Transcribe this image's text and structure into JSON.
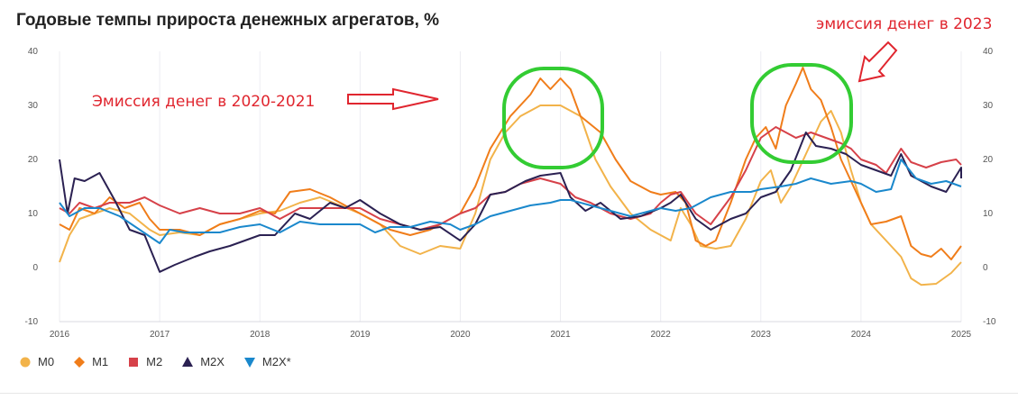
{
  "title": "Годовые темпы прироста денежных агрегатов, %",
  "annotations": {
    "left": "Эмиссия денег в 2020-2021",
    "right": "эмиссия денег в 2023"
  },
  "colors": {
    "M0": "#f2b34a",
    "M1": "#f07d1a",
    "M2": "#d64149",
    "M2X": "#2b2152",
    "M2X*": "#1a88cc",
    "annotation": "#e0262f",
    "highlight": "#33cc33"
  },
  "chart_data": {
    "type": "line",
    "title": "Годовые темпы прироста денежных агрегатов, %",
    "xlabel": "",
    "ylabel": "",
    "xlim": [
      2016,
      2025
    ],
    "ylim": [
      -10,
      40
    ],
    "x_ticks": [
      "2016",
      "2017",
      "2018",
      "2019",
      "2020",
      "2021",
      "2022",
      "2023",
      "2024",
      "2025"
    ],
    "y_ticks": [
      "40",
      "30",
      "20",
      "10",
      "0",
      "-10"
    ],
    "grid": "vertical",
    "legend_position": "bottom-left",
    "series": [
      {
        "name": "M0",
        "points": [
          [
            2016.0,
            1
          ],
          [
            2016.1,
            6
          ],
          [
            2016.2,
            9
          ],
          [
            2016.35,
            10
          ],
          [
            2016.5,
            11
          ],
          [
            2016.7,
            10
          ],
          [
            2016.9,
            7
          ],
          [
            2017.0,
            6
          ],
          [
            2017.2,
            6.5
          ],
          [
            2017.4,
            6
          ],
          [
            2017.6,
            8
          ],
          [
            2017.8,
            9
          ],
          [
            2018.0,
            10
          ],
          [
            2018.2,
            10.5
          ],
          [
            2018.4,
            12
          ],
          [
            2018.6,
            13
          ],
          [
            2018.8,
            11.5
          ],
          [
            2019.0,
            10
          ],
          [
            2019.2,
            8
          ],
          [
            2019.4,
            4
          ],
          [
            2019.6,
            2.5
          ],
          [
            2019.8,
            4
          ],
          [
            2020.0,
            3.5
          ],
          [
            2020.15,
            10
          ],
          [
            2020.3,
            20
          ],
          [
            2020.45,
            25
          ],
          [
            2020.6,
            28
          ],
          [
            2020.8,
            30
          ],
          [
            2021.0,
            30
          ],
          [
            2021.2,
            28
          ],
          [
            2021.35,
            20
          ],
          [
            2021.5,
            15
          ],
          [
            2021.7,
            10
          ],
          [
            2021.9,
            7
          ],
          [
            2022.0,
            6
          ],
          [
            2022.1,
            5
          ],
          [
            2022.2,
            11
          ],
          [
            2022.3,
            8
          ],
          [
            2022.4,
            4
          ],
          [
            2022.55,
            3.5
          ],
          [
            2022.7,
            4
          ],
          [
            2022.85,
            9
          ],
          [
            2023.0,
            16
          ],
          [
            2023.1,
            18
          ],
          [
            2023.2,
            12
          ],
          [
            2023.3,
            15
          ],
          [
            2023.45,
            21
          ],
          [
            2023.6,
            27
          ],
          [
            2023.7,
            29
          ],
          [
            2023.8,
            25
          ],
          [
            2023.9,
            18
          ],
          [
            2024.0,
            12
          ],
          [
            2024.1,
            8
          ],
          [
            2024.25,
            5
          ],
          [
            2024.4,
            2
          ],
          [
            2024.5,
            -2
          ],
          [
            2024.6,
            -3.2
          ],
          [
            2024.75,
            -3
          ],
          [
            2024.9,
            -1
          ],
          [
            2025.0,
            1
          ]
        ]
      },
      {
        "name": "M1",
        "points": [
          [
            2016.0,
            8
          ],
          [
            2016.1,
            7
          ],
          [
            2016.2,
            11
          ],
          [
            2016.35,
            10
          ],
          [
            2016.5,
            13
          ],
          [
            2016.65,
            11
          ],
          [
            2016.8,
            12
          ],
          [
            2016.9,
            9
          ],
          [
            2017.0,
            7
          ],
          [
            2017.2,
            7
          ],
          [
            2017.4,
            6
          ],
          [
            2017.6,
            8
          ],
          [
            2017.8,
            9
          ],
          [
            2018.0,
            10.5
          ],
          [
            2018.15,
            10
          ],
          [
            2018.3,
            14
          ],
          [
            2018.5,
            14.5
          ],
          [
            2018.7,
            13
          ],
          [
            2018.9,
            11
          ],
          [
            2019.1,
            9
          ],
          [
            2019.3,
            7
          ],
          [
            2019.5,
            6
          ],
          [
            2019.7,
            7
          ],
          [
            2019.9,
            9
          ],
          [
            2020.0,
            10
          ],
          [
            2020.15,
            15
          ],
          [
            2020.3,
            22
          ],
          [
            2020.5,
            28
          ],
          [
            2020.7,
            32
          ],
          [
            2020.8,
            35
          ],
          [
            2020.9,
            33
          ],
          [
            2021.0,
            35
          ],
          [
            2021.1,
            33
          ],
          [
            2021.2,
            28
          ],
          [
            2021.4,
            25
          ],
          [
            2021.55,
            20
          ],
          [
            2021.7,
            16
          ],
          [
            2021.9,
            14
          ],
          [
            2022.0,
            13.5
          ],
          [
            2022.15,
            14
          ],
          [
            2022.25,
            12
          ],
          [
            2022.35,
            5
          ],
          [
            2022.45,
            4
          ],
          [
            2022.55,
            5
          ],
          [
            2022.7,
            12
          ],
          [
            2022.85,
            20
          ],
          [
            2022.95,
            24
          ],
          [
            2023.05,
            26
          ],
          [
            2023.15,
            22
          ],
          [
            2023.25,
            30
          ],
          [
            2023.35,
            34
          ],
          [
            2023.42,
            37
          ],
          [
            2023.5,
            33
          ],
          [
            2023.6,
            31
          ],
          [
            2023.7,
            26
          ],
          [
            2023.8,
            20
          ],
          [
            2023.9,
            16
          ],
          [
            2024.0,
            12
          ],
          [
            2024.1,
            8
          ],
          [
            2024.25,
            8.5
          ],
          [
            2024.4,
            9.5
          ],
          [
            2024.5,
            4
          ],
          [
            2024.6,
            2.5
          ],
          [
            2024.7,
            2
          ],
          [
            2024.8,
            3.5
          ],
          [
            2024.9,
            1.5
          ],
          [
            2025.0,
            4
          ]
        ]
      },
      {
        "name": "M2",
        "points": [
          [
            2016.0,
            11
          ],
          [
            2016.1,
            10
          ],
          [
            2016.2,
            12
          ],
          [
            2016.35,
            11
          ],
          [
            2016.5,
            12
          ],
          [
            2016.7,
            12
          ],
          [
            2016.85,
            13
          ],
          [
            2017.0,
            11.5
          ],
          [
            2017.2,
            10
          ],
          [
            2017.4,
            11
          ],
          [
            2017.6,
            10
          ],
          [
            2017.8,
            10
          ],
          [
            2018.0,
            11
          ],
          [
            2018.2,
            9
          ],
          [
            2018.4,
            11
          ],
          [
            2018.6,
            11
          ],
          [
            2018.8,
            11
          ],
          [
            2019.0,
            11
          ],
          [
            2019.2,
            9
          ],
          [
            2019.4,
            8
          ],
          [
            2019.6,
            7
          ],
          [
            2019.8,
            8
          ],
          [
            2020.0,
            10
          ],
          [
            2020.15,
            11
          ],
          [
            2020.3,
            13.5
          ],
          [
            2020.45,
            14
          ],
          [
            2020.6,
            15.5
          ],
          [
            2020.8,
            16.5
          ],
          [
            2021.0,
            15.5
          ],
          [
            2021.15,
            13
          ],
          [
            2021.3,
            12
          ],
          [
            2021.5,
            10
          ],
          [
            2021.7,
            9
          ],
          [
            2021.9,
            10
          ],
          [
            2022.0,
            12
          ],
          [
            2022.1,
            13.5
          ],
          [
            2022.2,
            14
          ],
          [
            2022.35,
            10
          ],
          [
            2022.5,
            8
          ],
          [
            2022.7,
            13
          ],
          [
            2022.85,
            18
          ],
          [
            2023.0,
            24
          ],
          [
            2023.15,
            26
          ],
          [
            2023.25,
            25
          ],
          [
            2023.35,
            24
          ],
          [
            2023.5,
            25
          ],
          [
            2023.65,
            24
          ],
          [
            2023.8,
            23
          ],
          [
            2023.9,
            22
          ],
          [
            2024.0,
            20
          ],
          [
            2024.15,
            19
          ],
          [
            2024.25,
            17.5
          ],
          [
            2024.4,
            22
          ],
          [
            2024.5,
            19.5
          ],
          [
            2024.65,
            18.5
          ],
          [
            2024.8,
            19.5
          ],
          [
            2024.95,
            20
          ],
          [
            2025.0,
            19
          ]
        ]
      },
      {
        "name": "M2X",
        "points": [
          [
            2016.0,
            20
          ],
          [
            2016.08,
            10
          ],
          [
            2016.15,
            16.5
          ],
          [
            2016.25,
            16
          ],
          [
            2016.4,
            17.5
          ],
          [
            2016.55,
            12.5
          ],
          [
            2016.7,
            7
          ],
          [
            2016.85,
            6
          ],
          [
            2017.0,
            -0.8
          ],
          [
            2017.15,
            0.5
          ],
          [
            2017.35,
            2
          ],
          [
            2017.5,
            3
          ],
          [
            2017.7,
            4
          ],
          [
            2017.85,
            5
          ],
          [
            2018.0,
            6
          ],
          [
            2018.15,
            6
          ],
          [
            2018.35,
            10
          ],
          [
            2018.5,
            9
          ],
          [
            2018.7,
            12
          ],
          [
            2018.85,
            11
          ],
          [
            2019.0,
            12.5
          ],
          [
            2019.2,
            10
          ],
          [
            2019.4,
            8
          ],
          [
            2019.6,
            7
          ],
          [
            2019.8,
            7.5
          ],
          [
            2020.0,
            5
          ],
          [
            2020.15,
            8
          ],
          [
            2020.3,
            13.5
          ],
          [
            2020.45,
            14
          ],
          [
            2020.65,
            16
          ],
          [
            2020.8,
            17
          ],
          [
            2021.0,
            17.5
          ],
          [
            2021.1,
            13
          ],
          [
            2021.25,
            10.5
          ],
          [
            2021.4,
            12
          ],
          [
            2021.6,
            9
          ],
          [
            2021.8,
            9.5
          ],
          [
            2022.0,
            11
          ],
          [
            2022.1,
            12
          ],
          [
            2022.2,
            13.5
          ],
          [
            2022.35,
            9
          ],
          [
            2022.5,
            7
          ],
          [
            2022.7,
            9
          ],
          [
            2022.85,
            10
          ],
          [
            2023.0,
            13
          ],
          [
            2023.15,
            14
          ],
          [
            2023.3,
            18
          ],
          [
            2023.45,
            25
          ],
          [
            2023.55,
            22.5
          ],
          [
            2023.7,
            22
          ],
          [
            2023.85,
            21
          ],
          [
            2024.0,
            19
          ],
          [
            2024.15,
            18
          ],
          [
            2024.3,
            17
          ],
          [
            2024.4,
            21
          ],
          [
            2024.5,
            17
          ],
          [
            2024.7,
            15
          ],
          [
            2024.85,
            14
          ],
          [
            2025.0,
            18.5
          ],
          [
            2025.0,
            16.5
          ]
        ]
      },
      {
        "name": "M2X*",
        "points": [
          [
            2016.0,
            12
          ],
          [
            2016.1,
            9.5
          ],
          [
            2016.25,
            11
          ],
          [
            2016.4,
            11
          ],
          [
            2016.6,
            9.5
          ],
          [
            2016.8,
            7
          ],
          [
            2017.0,
            4.5
          ],
          [
            2017.1,
            7
          ],
          [
            2017.25,
            6.5
          ],
          [
            2017.4,
            6.5
          ],
          [
            2017.6,
            6.5
          ],
          [
            2017.8,
            7.5
          ],
          [
            2018.0,
            8
          ],
          [
            2018.2,
            6.5
          ],
          [
            2018.4,
            8.5
          ],
          [
            2018.6,
            8
          ],
          [
            2018.8,
            8
          ],
          [
            2019.0,
            8
          ],
          [
            2019.15,
            6.5
          ],
          [
            2019.3,
            7.5
          ],
          [
            2019.5,
            7.5
          ],
          [
            2019.7,
            8.5
          ],
          [
            2019.9,
            8
          ],
          [
            2020.0,
            7
          ],
          [
            2020.15,
            8
          ],
          [
            2020.3,
            9.5
          ],
          [
            2020.5,
            10.5
          ],
          [
            2020.7,
            11.5
          ],
          [
            2020.9,
            12
          ],
          [
            2021.0,
            12.5
          ],
          [
            2021.1,
            12.5
          ],
          [
            2021.3,
            11.5
          ],
          [
            2021.5,
            10.5
          ],
          [
            2021.7,
            9.5
          ],
          [
            2021.9,
            10.5
          ],
          [
            2022.0,
            11
          ],
          [
            2022.15,
            10.5
          ],
          [
            2022.3,
            11
          ],
          [
            2022.5,
            13
          ],
          [
            2022.7,
            14
          ],
          [
            2022.9,
            14
          ],
          [
            2023.0,
            14.5
          ],
          [
            2023.2,
            15
          ],
          [
            2023.35,
            15.5
          ],
          [
            2023.5,
            16.5
          ],
          [
            2023.7,
            15.5
          ],
          [
            2023.9,
            16
          ],
          [
            2024.0,
            15.5
          ],
          [
            2024.15,
            14
          ],
          [
            2024.3,
            14.5
          ],
          [
            2024.4,
            20
          ],
          [
            2024.55,
            16.5
          ],
          [
            2024.7,
            15.5
          ],
          [
            2024.85,
            16
          ],
          [
            2025.0,
            15
          ]
        ]
      }
    ]
  }
}
